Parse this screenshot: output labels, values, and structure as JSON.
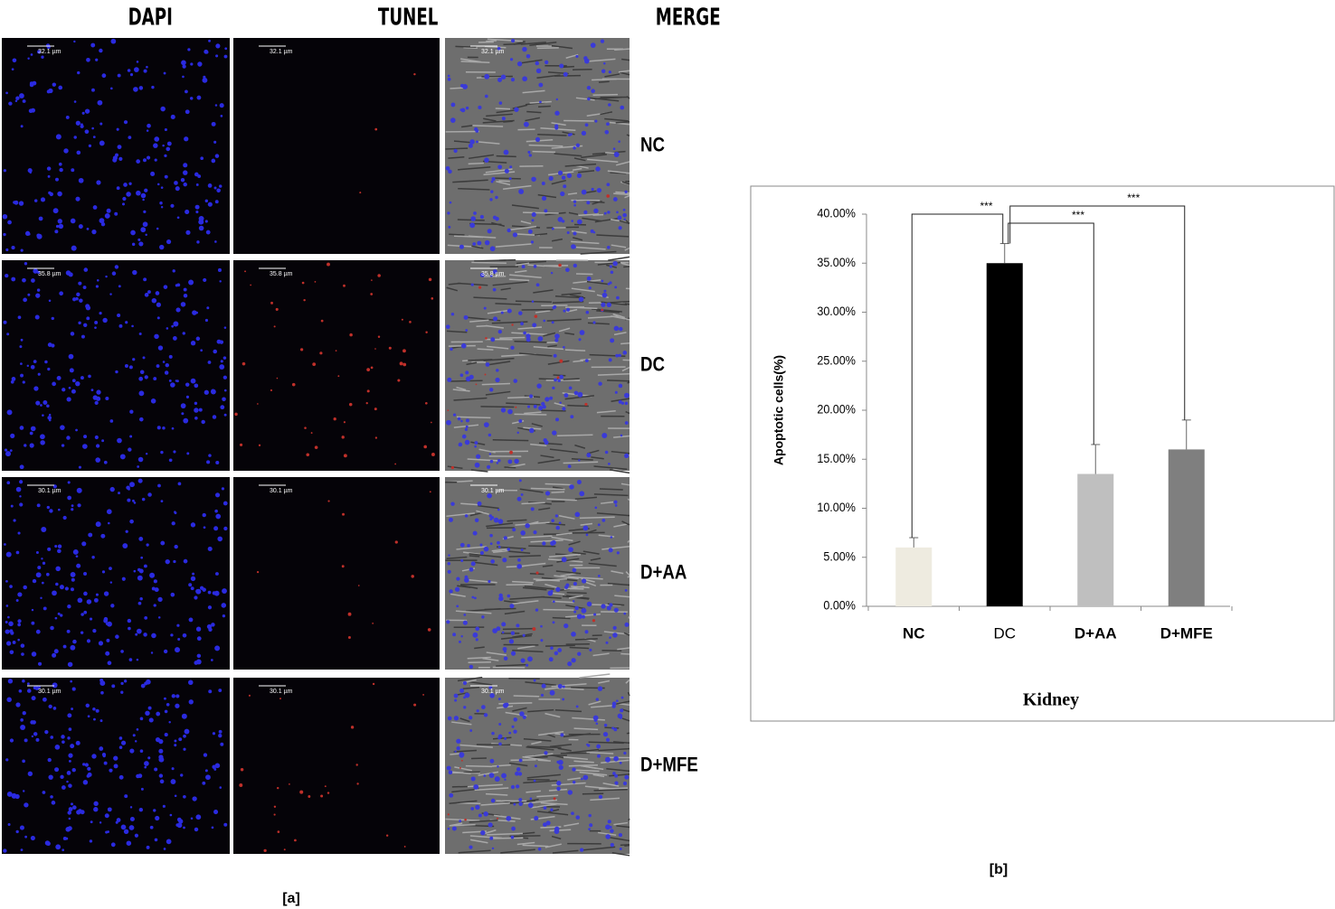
{
  "figure_a": {
    "label": "[a]",
    "columns": [
      "DAPI",
      "TUNEL",
      "MERGE"
    ],
    "rows": [
      {
        "label": "NC",
        "scale_bar": "32.1 µm"
      },
      {
        "label": "DC",
        "scale_bar": "35.8 µm"
      },
      {
        "label": "D+AA",
        "scale_bar": "30.1 µm"
      },
      {
        "label": "D+MFE",
        "scale_bar": "30.1 µm"
      }
    ]
  },
  "figure_b": {
    "label": "[b]"
  },
  "chart_data": {
    "type": "bar",
    "x_label": "Kidney",
    "y_label": "Apoptotic cells(%)",
    "categories": [
      "NC",
      "DC",
      "D+AA",
      "D+MFE"
    ],
    "values": [
      6,
      35,
      13.5,
      16
    ],
    "errors": [
      1,
      2,
      3,
      3
    ],
    "colors": [
      "#eeebe0",
      "#000000",
      "#bfbfbf",
      "#7f7f7f"
    ],
    "ylim": [
      0,
      40
    ],
    "yticks": [
      {
        "value": 0,
        "label": "0.00%"
      },
      {
        "value": 5,
        "label": "5.00%"
      },
      {
        "value": 10,
        "label": "10.00%"
      },
      {
        "value": 15,
        "label": "15.00%"
      },
      {
        "value": 20,
        "label": "20.00%"
      },
      {
        "value": 25,
        "label": "25.00%"
      },
      {
        "value": 30,
        "label": "30.00%"
      },
      {
        "value": 35,
        "label": "35.00%"
      },
      {
        "value": 40,
        "label": "40.00%"
      }
    ],
    "significance": [
      {
        "label": "***",
        "pair": [
          "NC",
          "DC"
        ]
      },
      {
        "label": "***",
        "pair": [
          "DC",
          "D+AA"
        ]
      },
      {
        "label": "***",
        "pair": [
          "DC",
          "D+MFE"
        ]
      }
    ],
    "grid": false
  }
}
